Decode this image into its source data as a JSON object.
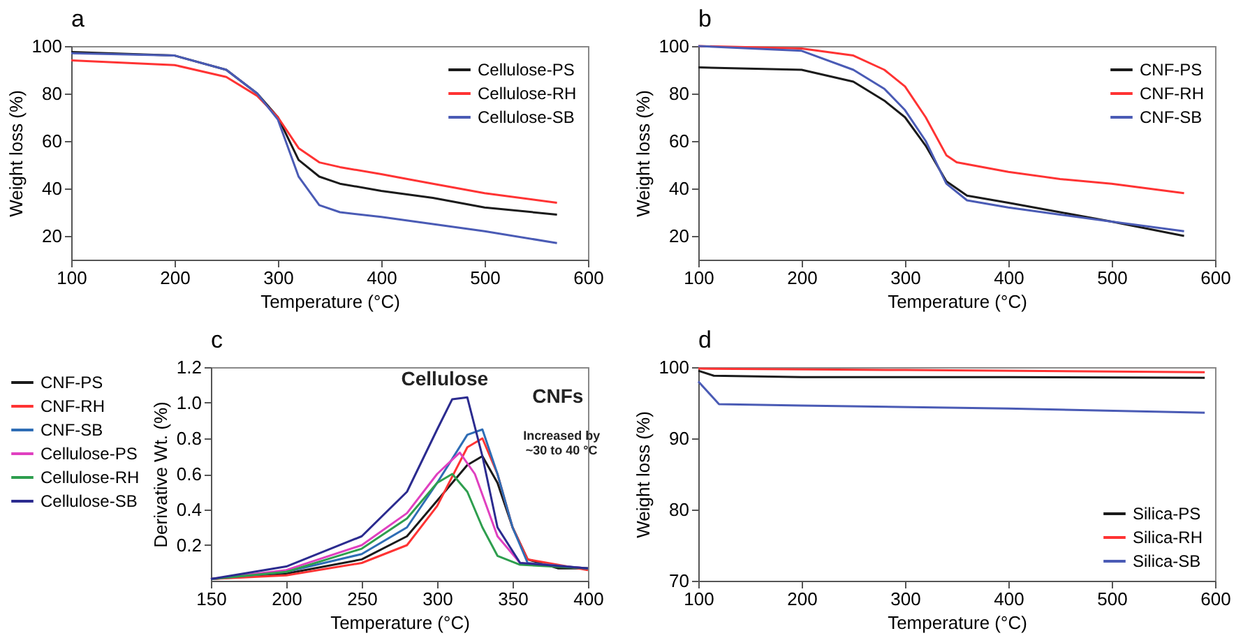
{
  "chart_data": [
    {
      "type": "line",
      "title": "a",
      "xlabel": "Temperature (°C)",
      "ylabel": "Weight loss (%)",
      "xlim": [
        100,
        600
      ],
      "ylim": [
        10,
        100
      ],
      "xticks": [
        100,
        200,
        300,
        400,
        500,
        600
      ],
      "yticks": [
        20,
        40,
        60,
        80,
        100
      ],
      "legend": "top right",
      "series": [
        {
          "name": "Cellulose-PS",
          "color": "#1a1a1a",
          "x": [
            100,
            200,
            250,
            280,
            300,
            320,
            340,
            360,
            400,
            450,
            500,
            570
          ],
          "values": [
            97.5,
            96,
            90,
            80,
            70,
            52,
            45,
            42,
            39,
            36,
            32,
            29
          ]
        },
        {
          "name": "Cellulose-RH",
          "color": "#ff3333",
          "x": [
            100,
            200,
            250,
            280,
            300,
            320,
            340,
            360,
            400,
            450,
            500,
            570
          ],
          "values": [
            94,
            92,
            87,
            79,
            70,
            57,
            51,
            49,
            46,
            42,
            38,
            34
          ]
        },
        {
          "name": "Cellulose-SB",
          "color": "#4a5bb5",
          "x": [
            100,
            200,
            250,
            280,
            300,
            320,
            340,
            360,
            400,
            450,
            500,
            570
          ],
          "values": [
            97,
            96,
            90,
            80,
            69,
            45,
            33,
            30,
            28,
            25,
            22,
            17
          ]
        }
      ]
    },
    {
      "type": "line",
      "title": "b",
      "xlabel": "Temperature (°C)",
      "ylabel": "Weight loss (%)",
      "xlim": [
        100,
        600
      ],
      "ylim": [
        10,
        100
      ],
      "xticks": [
        100,
        200,
        300,
        400,
        500,
        600
      ],
      "yticks": [
        20,
        40,
        60,
        80,
        100
      ],
      "legend": "top right",
      "series": [
        {
          "name": "CNF-PS",
          "color": "#1a1a1a",
          "x": [
            100,
            200,
            250,
            280,
            300,
            320,
            340,
            360,
            400,
            450,
            500,
            570
          ],
          "values": [
            91,
            90,
            85,
            77,
            70,
            58,
            43,
            37,
            34,
            30,
            26,
            20
          ]
        },
        {
          "name": "CNF-RH",
          "color": "#ff3333",
          "x": [
            100,
            200,
            250,
            280,
            300,
            320,
            340,
            350,
            400,
            450,
            500,
            570
          ],
          "values": [
            100,
            99,
            96,
            90,
            83,
            70,
            54,
            51,
            47,
            44,
            42,
            38
          ]
        },
        {
          "name": "CNF-SB",
          "color": "#4a5bb5",
          "x": [
            100,
            200,
            250,
            280,
            300,
            320,
            340,
            360,
            400,
            450,
            500,
            570
          ],
          "values": [
            100,
            98,
            90,
            82,
            73,
            60,
            42,
            35,
            32,
            29,
            26,
            22
          ]
        }
      ]
    },
    {
      "type": "line",
      "title": "c",
      "xlabel": "Temperature (°C)",
      "ylabel": "Derivative Wt. (%)",
      "xlim": [
        150,
        400
      ],
      "ylim": [
        0,
        1.2
      ],
      "xticks": [
        150,
        200,
        250,
        300,
        350,
        400
      ],
      "yticks": [
        0.2,
        0.4,
        0.6,
        0.8,
        {
          "value": 1,
          "label": "1.0"
        },
        1.2
      ],
      "legend": "left",
      "annotations": [
        "Cellulose",
        "CNFs",
        "Increased by",
        "~30 to 40 °C"
      ],
      "series": [
        {
          "name": "CNF-PS",
          "color": "#1a1a1a",
          "x": [
            150,
            200,
            250,
            280,
            300,
            320,
            330,
            340,
            350,
            360,
            380,
            400
          ],
          "values": [
            0.01,
            0.04,
            0.12,
            0.25,
            0.45,
            0.65,
            0.7,
            0.55,
            0.3,
            0.12,
            0.07,
            0.07
          ]
        },
        {
          "name": "CNF-RH",
          "color": "#ff3333",
          "x": [
            150,
            200,
            250,
            280,
            300,
            320,
            330,
            340,
            350,
            360,
            400
          ],
          "values": [
            0.01,
            0.03,
            0.1,
            0.2,
            0.42,
            0.75,
            0.8,
            0.6,
            0.3,
            0.12,
            0.06
          ]
        },
        {
          "name": "CNF-SB",
          "color": "#2e6db5",
          "x": [
            150,
            200,
            250,
            280,
            300,
            320,
            330,
            340,
            350,
            360,
            400
          ],
          "values": [
            0.01,
            0.05,
            0.15,
            0.3,
            0.55,
            0.82,
            0.85,
            0.6,
            0.3,
            0.1,
            0.07
          ]
        },
        {
          "name": "Cellulose-PS",
          "color": "#e040c0",
          "x": [
            150,
            200,
            250,
            280,
            300,
            315,
            325,
            340,
            355,
            400
          ],
          "values": [
            0.01,
            0.06,
            0.2,
            0.38,
            0.6,
            0.72,
            0.6,
            0.25,
            0.1,
            0.07
          ]
        },
        {
          "name": "Cellulose-RH",
          "color": "#2e9e4e",
          "x": [
            150,
            200,
            250,
            280,
            300,
            310,
            320,
            330,
            340,
            355,
            400
          ],
          "values": [
            0.01,
            0.05,
            0.18,
            0.35,
            0.55,
            0.6,
            0.5,
            0.3,
            0.14,
            0.09,
            0.07
          ]
        },
        {
          "name": "Cellulose-SB",
          "color": "#2b2b8f",
          "x": [
            150,
            200,
            250,
            280,
            300,
            310,
            320,
            330,
            340,
            355,
            400
          ],
          "values": [
            0.01,
            0.08,
            0.25,
            0.5,
            0.85,
            1.02,
            1.03,
            0.7,
            0.3,
            0.1,
            0.07
          ]
        }
      ]
    },
    {
      "type": "line",
      "title": "d",
      "xlabel": "Temperature (°C)",
      "ylabel": "Weight loss (%)",
      "xlim": [
        100,
        600
      ],
      "ylim": [
        70,
        100
      ],
      "xticks": [
        100,
        200,
        300,
        400,
        500,
        600
      ],
      "yticks": [
        70,
        80,
        90,
        100
      ],
      "legend": "bottom right",
      "series": [
        {
          "name": "Silica-PS",
          "color": "#1a1a1a",
          "x": [
            100,
            115,
            200,
            400,
            590
          ],
          "values": [
            99.5,
            98.8,
            98.6,
            98.6,
            98.5
          ]
        },
        {
          "name": "Silica-RH",
          "color": "#ff3333",
          "x": [
            100,
            300,
            590
          ],
          "values": [
            99.8,
            99.6,
            99.3
          ]
        },
        {
          "name": "Silica-SB",
          "color": "#4a5bb5",
          "x": [
            100,
            120,
            200,
            400,
            590
          ],
          "values": [
            98,
            94.8,
            94.6,
            94.2,
            93.6
          ]
        }
      ]
    }
  ]
}
